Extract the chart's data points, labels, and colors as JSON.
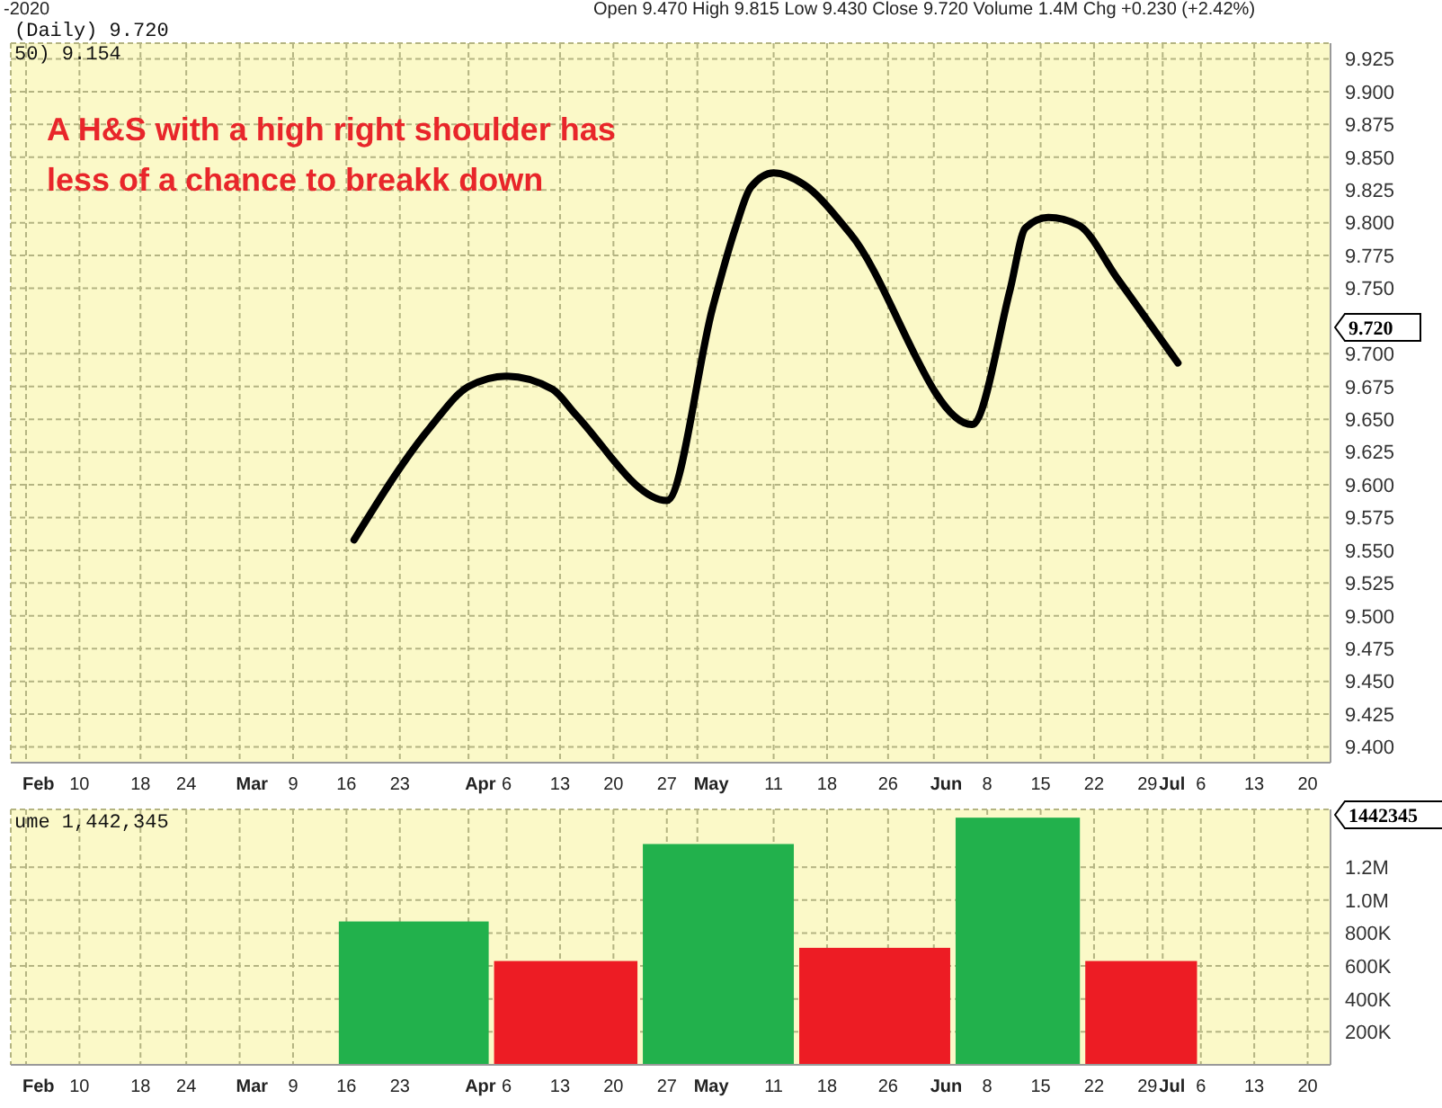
{
  "chart_data": [
    {
      "type": "line",
      "title": "(Daily) 9.720",
      "subtitle": "50) 9.154",
      "annotations": [
        "A H&S with a high right shoulder has less of a chance to breakk down",
        "Open 9.470 High 9.815 Low 9.430 Close 9.720 Volume 1.4M Chg +0.230 (+2.42%)",
        "-2020",
        "9.720"
      ],
      "series": [
        {
          "color": "#000000",
          "x": [
            "2020-03-17",
            "2020-03-27",
            "2020-04-01",
            "2020-04-06",
            "2020-04-12",
            "2020-04-15",
            "2020-04-27",
            "2020-05-03",
            "2020-05-06",
            "2020-05-08",
            "2020-05-11",
            "2020-05-15",
            "2020-05-21",
            "2020-06-06",
            "2020-06-11",
            "2020-06-13",
            "2020-06-16",
            "2020-06-20",
            "2020-06-25",
            "2020-07-03"
          ],
          "values": [
            9.558,
            9.644,
            9.675,
            9.683,
            9.673,
            9.654,
            9.588,
            9.735,
            9.796,
            9.827,
            9.838,
            9.829,
            9.792,
            9.646,
            9.749,
            9.796,
            9.804,
            9.798,
            9.758,
            9.693
          ]
        }
      ],
      "marker": "none",
      "grid": true,
      "xlim": [
        "2020-02-01",
        "2020-07-23"
      ],
      "xticks": [
        {
          "value": "2020-02-03",
          "label": "Feb"
        },
        {
          "value": "2020-02-10",
          "label": "10"
        },
        {
          "value": "2020-02-18",
          "label": "18"
        },
        {
          "value": "2020-02-24",
          "label": "24"
        },
        {
          "value": "2020-03-02",
          "label": "Mar"
        },
        {
          "value": "2020-03-09",
          "label": "9"
        },
        {
          "value": "2020-03-16",
          "label": "16"
        },
        {
          "value": "2020-03-23",
          "label": "23"
        },
        {
          "value": "2020-04-01",
          "label": "Apr"
        },
        {
          "value": "2020-04-06",
          "label": "6"
        },
        {
          "value": "2020-04-13",
          "label": "13"
        },
        {
          "value": "2020-04-20",
          "label": "20"
        },
        {
          "value": "2020-04-27",
          "label": "27"
        },
        {
          "value": "2020-05-01",
          "label": "May"
        },
        {
          "value": "2020-05-11",
          "label": "11"
        },
        {
          "value": "2020-05-18",
          "label": "18"
        },
        {
          "value": "2020-05-26",
          "label": "26"
        },
        {
          "value": "2020-06-01",
          "label": "Jun"
        },
        {
          "value": "2020-06-08",
          "label": "8"
        },
        {
          "value": "2020-06-15",
          "label": "15"
        },
        {
          "value": "2020-06-22",
          "label": "22"
        },
        {
          "value": "2020-06-29",
          "label": "29"
        },
        {
          "value": "2020-07-01",
          "label": "Jul"
        },
        {
          "value": "2020-07-06",
          "label": "6"
        },
        {
          "value": "2020-07-13",
          "label": "13"
        },
        {
          "value": "2020-07-20",
          "label": "20"
        }
      ],
      "ylim": [
        9.388,
        9.937
      ],
      "yticks": [
        {
          "value": 9.4,
          "label": "9.400"
        },
        {
          "value": 9.425,
          "label": "9.425"
        },
        {
          "value": 9.45,
          "label": "9.450"
        },
        {
          "value": 9.475,
          "label": "9.475"
        },
        {
          "value": 9.5,
          "label": "9.500"
        },
        {
          "value": 9.525,
          "label": "9.525"
        },
        {
          "value": 9.55,
          "label": "9.550"
        },
        {
          "value": 9.575,
          "label": "9.575"
        },
        {
          "value": 9.6,
          "label": "9.600"
        },
        {
          "value": 9.625,
          "label": "9.625"
        },
        {
          "value": 9.65,
          "label": "9.650"
        },
        {
          "value": 9.675,
          "label": "9.675"
        },
        {
          "value": 9.7,
          "label": "9.700"
        },
        {
          "value": 9.75,
          "label": "9.750"
        },
        {
          "value": 9.775,
          "label": "9.775"
        },
        {
          "value": 9.8,
          "label": "9.800"
        },
        {
          "value": 9.825,
          "label": "9.825"
        },
        {
          "value": 9.85,
          "label": "9.850"
        },
        {
          "value": 9.875,
          "label": "9.875"
        },
        {
          "value": 9.9,
          "label": "9.900"
        },
        {
          "value": 9.925,
          "label": "9.925"
        }
      ],
      "line_style": "solid"
    },
    {
      "type": "bar",
      "title": "ume 1,442,345",
      "annotations": [
        "1442345"
      ],
      "x": [
        "2020-03-25",
        "2020-04-14",
        "2020-05-03",
        "2020-05-25",
        "2020-06-13",
        "2020-06-28"
      ],
      "values": [
        870000,
        630000,
        1340000,
        710000,
        1500000,
        630000
      ],
      "colors": [
        "#22b14c",
        "#ed1c24",
        "#22b14c",
        "#ed1c24",
        "#22b14c",
        "#ed1c24"
      ],
      "grid": true,
      "xlim": [
        "2020-02-01",
        "2020-07-23"
      ],
      "xticks": [
        {
          "value": "2020-02-03",
          "label": "Feb"
        },
        {
          "value": "2020-02-10",
          "label": "10"
        },
        {
          "value": "2020-02-18",
          "label": "18"
        },
        {
          "value": "2020-02-24",
          "label": "24"
        },
        {
          "value": "2020-03-02",
          "label": "Mar"
        },
        {
          "value": "2020-03-09",
          "label": "9"
        },
        {
          "value": "2020-03-16",
          "label": "16"
        },
        {
          "value": "2020-03-23",
          "label": "23"
        },
        {
          "value": "2020-04-01",
          "label": "Apr"
        },
        {
          "value": "2020-04-06",
          "label": "6"
        },
        {
          "value": "2020-04-13",
          "label": "13"
        },
        {
          "value": "2020-04-20",
          "label": "20"
        },
        {
          "value": "2020-04-27",
          "label": "27"
        },
        {
          "value": "2020-05-01",
          "label": "May"
        },
        {
          "value": "2020-05-11",
          "label": "11"
        },
        {
          "value": "2020-05-18",
          "label": "18"
        },
        {
          "value": "2020-05-26",
          "label": "26"
        },
        {
          "value": "2020-06-01",
          "label": "Jun"
        },
        {
          "value": "2020-06-08",
          "label": "8"
        },
        {
          "value": "2020-06-15",
          "label": "15"
        },
        {
          "value": "2020-06-22",
          "label": "22"
        },
        {
          "value": "2020-06-29",
          "label": "29"
        },
        {
          "value": "2020-07-01",
          "label": "Jul"
        },
        {
          "value": "2020-07-06",
          "label": "6"
        },
        {
          "value": "2020-07-13",
          "label": "13"
        },
        {
          "value": "2020-07-20",
          "label": "20"
        }
      ],
      "ylim": [
        0,
        1550000
      ],
      "yticks": [
        {
          "value": 200000,
          "label": "200K"
        },
        {
          "value": 400000,
          "label": "400K"
        },
        {
          "value": 600000,
          "label": "600K"
        },
        {
          "value": 800000,
          "label": "800K"
        },
        {
          "value": 1000000,
          "label": "1.0M"
        },
        {
          "value": 1200000,
          "label": "1.2M"
        }
      ]
    }
  ]
}
